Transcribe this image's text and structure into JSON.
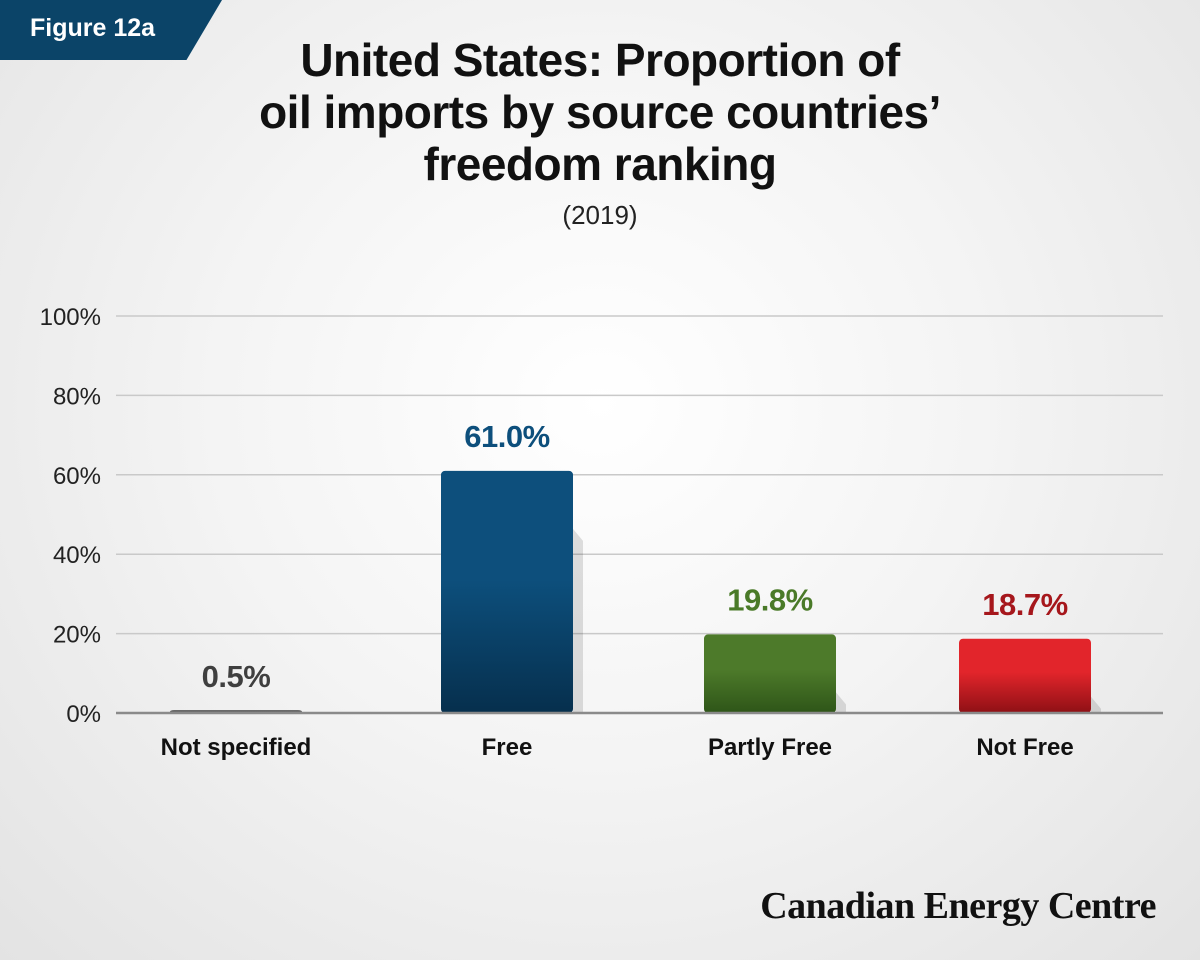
{
  "figure_label": "Figure 12a",
  "title_lines": [
    "United States: Proportion of",
    "oil imports by source countries’",
    "freedom ranking"
  ],
  "subtitle": "(2019)",
  "brand": "Canadian Energy Centre",
  "chart_data": {
    "type": "bar",
    "categories": [
      "Not specified",
      "Free",
      "Partly Free",
      "Not Free"
    ],
    "values": [
      0.5,
      61.0,
      19.8,
      18.7
    ],
    "data_labels": [
      "0.5%",
      "61.0%",
      "19.8%",
      "18.7%"
    ],
    "yticks": [
      0,
      20,
      40,
      60,
      80,
      100
    ],
    "ytick_labels": [
      "0%",
      "20%",
      "40%",
      "60%",
      "80%",
      "100%"
    ],
    "ylim": [
      0,
      100
    ],
    "grid": true,
    "bar_colors": [
      [
        "#6a6a6a",
        "#3f3f3f"
      ],
      [
        "#0d4f7c",
        "#062f4d"
      ],
      [
        "#4d7a2a",
        "#2e5518"
      ],
      [
        "#e2252b",
        "#8e1015"
      ]
    ],
    "label_colors": [
      "#3f3f3f",
      "#0d4f7c",
      "#4a7a28",
      "#a6171c"
    ]
  }
}
